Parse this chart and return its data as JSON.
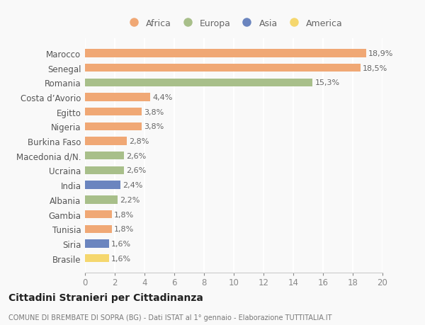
{
  "categories": [
    "Brasile",
    "Siria",
    "Tunisia",
    "Gambia",
    "Albania",
    "India",
    "Ucraina",
    "Macedonia d/N.",
    "Burkina Faso",
    "Nigeria",
    "Egitto",
    "Costa d’Avorio",
    "Romania",
    "Senegal",
    "Marocco"
  ],
  "values": [
    1.6,
    1.6,
    1.8,
    1.8,
    2.2,
    2.4,
    2.6,
    2.6,
    2.8,
    3.8,
    3.8,
    4.4,
    15.3,
    18.5,
    18.9
  ],
  "colors": [
    "#f5d76e",
    "#6b85bf",
    "#f0a875",
    "#f0a875",
    "#a8bf8a",
    "#6b85bf",
    "#a8bf8a",
    "#a8bf8a",
    "#f0a875",
    "#f0a875",
    "#f0a875",
    "#f0a875",
    "#a8bf8a",
    "#f0a875",
    "#f0a875"
  ],
  "labels": [
    "1,6%",
    "1,6%",
    "1,8%",
    "1,8%",
    "2,2%",
    "2,4%",
    "2,6%",
    "2,6%",
    "2,8%",
    "3,8%",
    "3,8%",
    "4,4%",
    "15,3%",
    "18,5%",
    "18,9%"
  ],
  "legend_names": [
    "Africa",
    "Europa",
    "Asia",
    "America"
  ],
  "legend_colors": [
    "#f0a875",
    "#a8bf8a",
    "#6b85bf",
    "#f5d76e"
  ],
  "xlim": [
    0,
    20
  ],
  "xticks": [
    0,
    2,
    4,
    6,
    8,
    10,
    12,
    14,
    16,
    18,
    20
  ],
  "title": "Cittadini Stranieri per Cittadinanza",
  "subtitle": "COMUNE DI BREMBATE DI SOPRA (BG) - Dati ISTAT al 1° gennaio - Elaborazione TUTTITALIA.IT",
  "background_color": "#f9f9f9",
  "grid_color": "#e8e8e8",
  "bar_height": 0.55
}
